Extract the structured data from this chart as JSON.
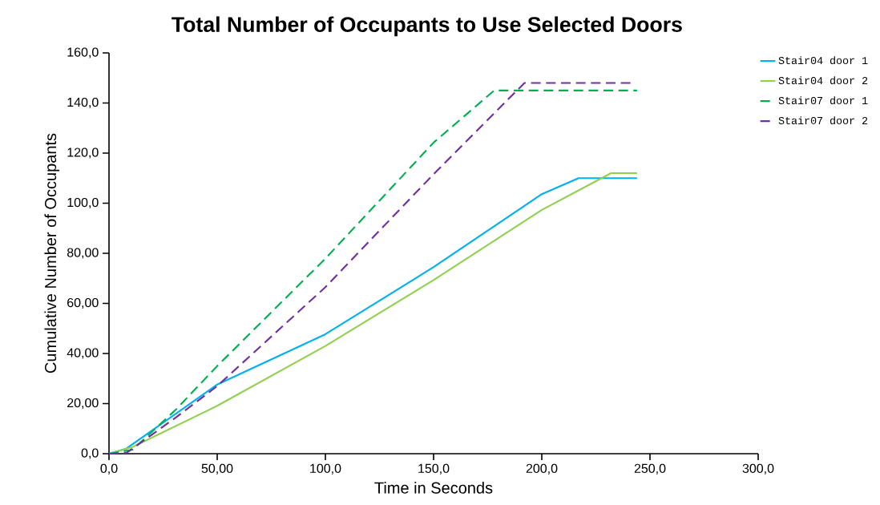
{
  "chart_data": {
    "type": "line",
    "title": "Total Number of Occupants to Use Selected Doors",
    "xlabel": "Time in Seconds",
    "ylabel": "Cumulative Number of Occupants",
    "xlim": [
      0,
      300
    ],
    "ylim": [
      0,
      160
    ],
    "xticks": [
      {
        "value": 0,
        "label": "0,0"
      },
      {
        "value": 50,
        "label": "50,00"
      },
      {
        "value": 100,
        "label": "100,0"
      },
      {
        "value": 150,
        "label": "150,0"
      },
      {
        "value": 200,
        "label": "200,0"
      },
      {
        "value": 250,
        "label": "250,0"
      },
      {
        "value": 300,
        "label": "300,0"
      }
    ],
    "yticks": [
      {
        "value": 0,
        "label": "0,0"
      },
      {
        "value": 20,
        "label": "20,00"
      },
      {
        "value": 40,
        "label": "40,00"
      },
      {
        "value": 60,
        "label": "60,00"
      },
      {
        "value": 80,
        "label": "80,00"
      },
      {
        "value": 100,
        "label": "100,0"
      },
      {
        "value": 120,
        "label": "120,0"
      },
      {
        "value": 140,
        "label": "140,0"
      },
      {
        "value": 160,
        "label": "160,0"
      }
    ],
    "grid": false,
    "legend": "top right",
    "marker": "none",
    "series": [
      {
        "name": "Stair04 door 1",
        "color": "#00b0f0",
        "line_style": "solid",
        "x": [
          0,
          8,
          50,
          100,
          150,
          200,
          217,
          244
        ],
        "values": [
          0,
          2,
          27.6,
          47.7,
          74.5,
          103.6,
          110,
          110
        ]
      },
      {
        "name": "Stair04 door 2",
        "color": "#92d050",
        "line_style": "solid",
        "x": [
          0,
          11,
          50,
          100,
          150,
          200,
          232,
          244
        ],
        "values": [
          0,
          2.7,
          19.1,
          43,
          69.3,
          97.3,
          112,
          112
        ]
      },
      {
        "name": "Stair07 door 1",
        "color": "#00b050",
        "line_style": "dashed",
        "x": [
          0,
          11,
          31,
          50,
          100,
          150,
          178,
          244
        ],
        "values": [
          0,
          1.6,
          17.7,
          35,
          77.9,
          124.2,
          145,
          145
        ]
      },
      {
        "name": "Stair07 door 2",
        "color": "#7030a0",
        "line_style": "dashed",
        "x": [
          0,
          8,
          31,
          50,
          100,
          150,
          192,
          242
        ],
        "values": [
          0,
          0.3,
          14.5,
          27,
          66.5,
          111.6,
          148,
          148
        ]
      }
    ]
  }
}
